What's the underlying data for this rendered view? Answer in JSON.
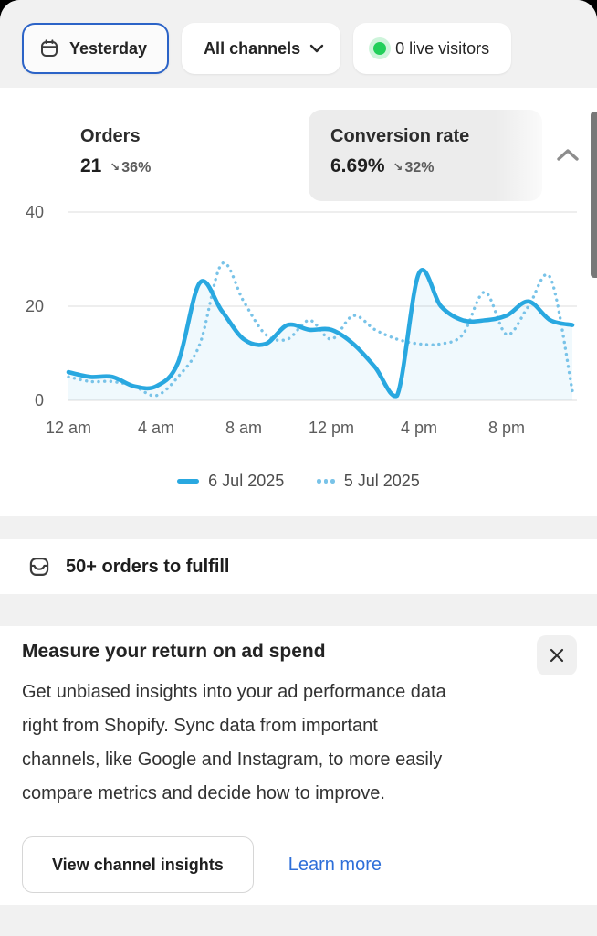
{
  "toolbar": {
    "date_button": {
      "label": "Yesterday",
      "icon": "calendar-icon"
    },
    "channels_button": {
      "label": "All channels",
      "icon": "chevron-down-icon"
    },
    "live_visitors": {
      "label": "0 live visitors",
      "status_color": "#22cf5a"
    }
  },
  "metrics": {
    "orders": {
      "label": "Orders",
      "value": "21",
      "delta_arrow": "↘",
      "delta": "36%"
    },
    "conversion_rate": {
      "label": "Conversion rate",
      "value": "6.69%",
      "delta_arrow": "↘",
      "delta": "32%"
    }
  },
  "chart_data": {
    "type": "line",
    "title": "",
    "xlabel": "",
    "ylabel": "",
    "x_hours": [
      0,
      1,
      2,
      3,
      4,
      5,
      6,
      7,
      8,
      9,
      10,
      11,
      12,
      13,
      14,
      15,
      16,
      17,
      18,
      19,
      20,
      21,
      22,
      23
    ],
    "xtick_hours": [
      0,
      4,
      8,
      12,
      16,
      20
    ],
    "xticklabels": [
      "12 am",
      "4 am",
      "8 am",
      "12 pm",
      "4 pm",
      "8 pm"
    ],
    "yticks": [
      0,
      20,
      40
    ],
    "ylim": [
      0,
      43
    ],
    "grid": "horizontal",
    "legend_position": "bottom",
    "series": [
      {
        "name": "6 Jul 2025",
        "style": "solid",
        "color": "#29a8e0",
        "fill": "rgba(41,168,224,0.07)",
        "values": [
          6,
          5,
          5,
          3,
          3,
          8,
          25,
          19,
          13,
          12,
          16,
          15,
          15,
          12,
          7,
          1,
          27,
          20,
          17,
          17,
          18,
          21,
          17,
          16
        ]
      },
      {
        "name": "5 Jul 2025",
        "style": "dotted",
        "color": "#79c3e8",
        "values": [
          5,
          4,
          4,
          3,
          1,
          5,
          12,
          29,
          21,
          14,
          13,
          17,
          13,
          18,
          15,
          13,
          12,
          12,
          14,
          23,
          14,
          20,
          26,
          2
        ]
      }
    ]
  },
  "fulfill_row": {
    "icon": "orders-box-icon",
    "label": "50+ orders to fulfill"
  },
  "ad_card": {
    "title": "Measure your return on ad spend",
    "body_lines": [
      "Get unbiased insights into your ad performance data",
      "right from Shopify. Sync data from important",
      "channels, like Google and Instagram, to more easily",
      "compare metrics and decide how to improve."
    ],
    "primary_button": "View channel insights",
    "link": "Learn more"
  },
  "colors": {
    "accent_blue": "#29a8e0",
    "dotted_blue": "#79c3e8",
    "focus_ring": "#2b63c7",
    "link_blue": "#2e6fd9",
    "live_green": "#22cf5a",
    "surface_gray": "#f1f1f1",
    "text_dark": "#232323",
    "text_secondary": "#5c5c5c"
  }
}
